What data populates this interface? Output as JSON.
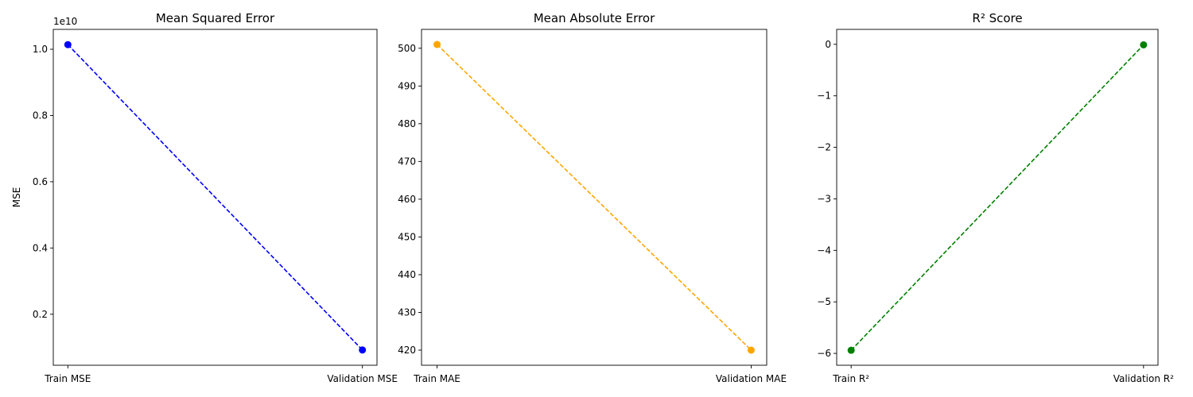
{
  "chart_data": [
    {
      "type": "line",
      "title": "Mean Squared Error",
      "xlabel": "",
      "ylabel": "MSE",
      "categories": [
        "Train MSE",
        "Validation MSE"
      ],
      "values": [
        10140000000,
        920000000
      ],
      "color": "#0000ff",
      "linestyle": "dashed",
      "marker": "circle",
      "ylim": [
        460000000,
        10600000000
      ],
      "yticks": [
        2000000000,
        4000000000,
        6000000000,
        8000000000,
        10000000000
      ],
      "ytick_labels": [
        "0.2",
        "0.4",
        "0.6",
        "0.8",
        "1.0"
      ],
      "offset_text": "1e10",
      "grid": false
    },
    {
      "type": "line",
      "title": "Mean Absolute Error",
      "xlabel": "",
      "ylabel": "",
      "categories": [
        "Train MAE",
        "Validation MAE"
      ],
      "values": [
        501,
        420
      ],
      "color": "#ffa500",
      "linestyle": "dashed",
      "marker": "circle",
      "ylim": [
        416,
        505
      ],
      "yticks": [
        420,
        430,
        440,
        450,
        460,
        470,
        480,
        490,
        500
      ],
      "ytick_labels": [
        "420",
        "430",
        "440",
        "450",
        "460",
        "470",
        "480",
        "490",
        "500"
      ],
      "grid": false
    },
    {
      "type": "line",
      "title": "R² Score",
      "xlabel": "",
      "ylabel": "",
      "categories": [
        "Train R²",
        "Validation R²"
      ],
      "values": [
        -5.94,
        -0.01
      ],
      "color": "#008000",
      "linestyle": "dashed",
      "marker": "circle",
      "ylim": [
        -6.23,
        0.29
      ],
      "yticks": [
        -6,
        -5,
        -4,
        -3,
        -2,
        -1,
        0
      ],
      "ytick_labels": [
        "−6",
        "−5",
        "−4",
        "−3",
        "−2",
        "−1",
        "0"
      ],
      "grid": false
    }
  ]
}
